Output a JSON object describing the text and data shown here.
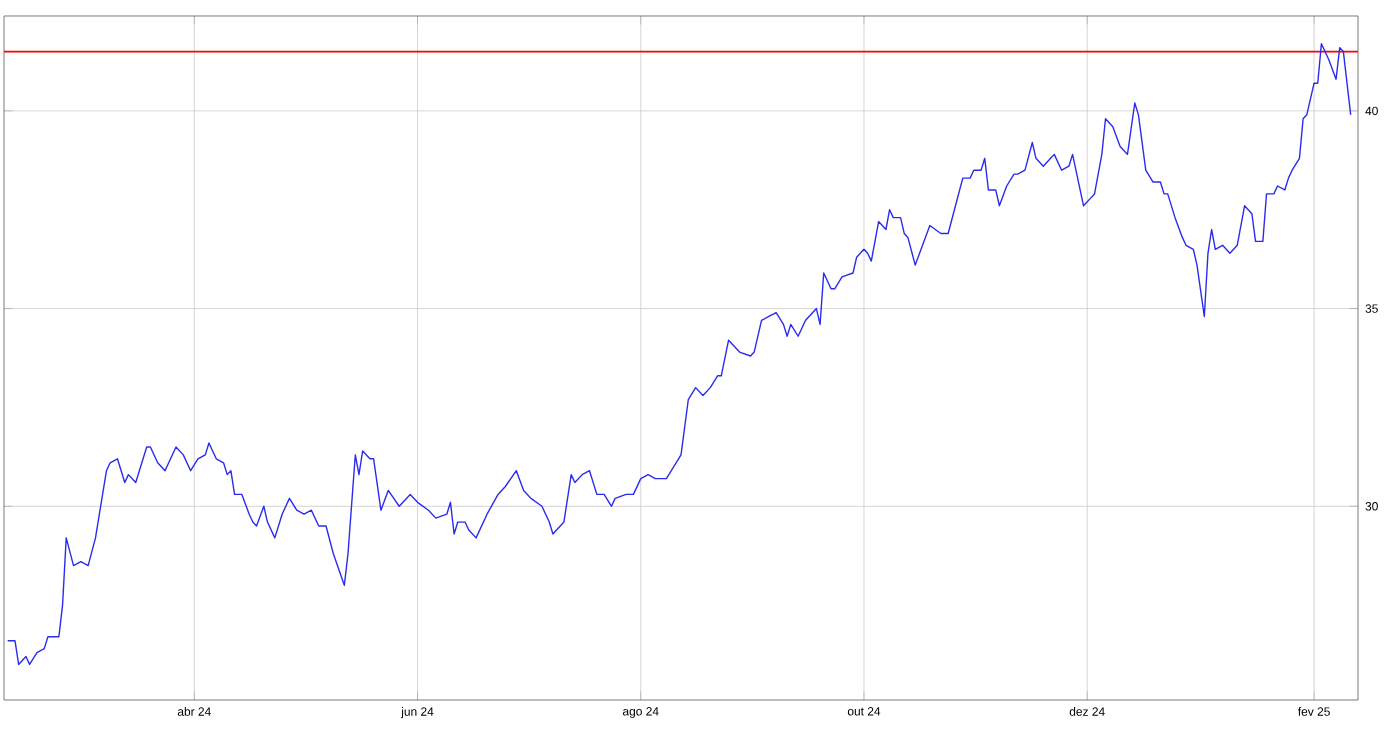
{
  "chart_data": {
    "type": "line",
    "x": [
      "2024-02-10",
      "2024-02-12",
      "2024-02-13",
      "2024-02-15",
      "2024-02-16",
      "2024-02-18",
      "2024-02-20",
      "2024-02-21",
      "2024-02-22",
      "2024-02-24",
      "2024-02-25",
      "2024-02-26",
      "2024-02-28",
      "2024-03-01",
      "2024-03-03",
      "2024-03-05",
      "2024-03-08",
      "2024-03-09",
      "2024-03-11",
      "2024-03-13",
      "2024-03-14",
      "2024-03-16",
      "2024-03-19",
      "2024-03-20",
      "2024-03-22",
      "2024-03-24",
      "2024-03-27",
      "2024-03-29",
      "2024-03-31",
      "2024-04-02",
      "2024-04-04",
      "2024-04-05",
      "2024-04-07",
      "2024-04-09",
      "2024-04-10",
      "2024-04-11",
      "2024-04-12",
      "2024-04-14",
      "2024-04-16",
      "2024-04-17",
      "2024-04-18",
      "2024-04-20",
      "2024-04-21",
      "2024-04-23",
      "2024-04-25",
      "2024-04-27",
      "2024-04-29",
      "2024-05-01",
      "2024-05-03",
      "2024-05-05",
      "2024-05-07",
      "2024-05-09",
      "2024-05-12",
      "2024-05-13",
      "2024-05-15",
      "2024-05-16",
      "2024-05-17",
      "2024-05-19",
      "2024-05-20",
      "2024-05-22",
      "2024-05-24",
      "2024-05-27",
      "2024-05-30",
      "2024-06-01",
      "2024-06-04",
      "2024-06-06",
      "2024-06-09",
      "2024-06-10",
      "2024-06-11",
      "2024-06-12",
      "2024-06-14",
      "2024-06-15",
      "2024-06-17",
      "2024-06-20",
      "2024-06-23",
      "2024-06-25",
      "2024-06-28",
      "2024-06-30",
      "2024-07-02",
      "2024-07-05",
      "2024-07-07",
      "2024-07-08",
      "2024-07-11",
      "2024-07-13",
      "2024-07-14",
      "2024-07-16",
      "2024-07-18",
      "2024-07-20",
      "2024-07-22",
      "2024-07-24",
      "2024-07-25",
      "2024-07-28",
      "2024-07-30",
      "2024-08-01",
      "2024-08-03",
      "2024-08-05",
      "2024-08-08",
      "2024-08-10",
      "2024-08-12",
      "2024-08-14",
      "2024-08-16",
      "2024-08-18",
      "2024-08-20",
      "2024-08-22",
      "2024-08-23",
      "2024-08-25",
      "2024-08-28",
      "2024-08-31",
      "2024-09-01",
      "2024-09-03",
      "2024-09-05",
      "2024-09-07",
      "2024-09-09",
      "2024-09-10",
      "2024-09-11",
      "2024-09-13",
      "2024-09-15",
      "2024-09-18",
      "2024-09-19",
      "2024-09-20",
      "2024-09-22",
      "2024-09-23",
      "2024-09-25",
      "2024-09-28",
      "2024-09-29",
      "2024-10-01",
      "2024-10-02",
      "2024-10-03",
      "2024-10-05",
      "2024-10-07",
      "2024-10-08",
      "2024-10-09",
      "2024-10-11",
      "2024-10-12",
      "2024-10-13",
      "2024-10-15",
      "2024-10-17",
      "2024-10-19",
      "2024-10-22",
      "2024-10-24",
      "2024-10-26",
      "2024-10-28",
      "2024-10-30",
      "2024-10-31",
      "2024-11-02",
      "2024-11-03",
      "2024-11-04",
      "2024-11-06",
      "2024-11-07",
      "2024-11-09",
      "2024-11-11",
      "2024-11-12",
      "2024-11-14",
      "2024-11-16",
      "2024-11-17",
      "2024-11-19",
      "2024-11-21",
      "2024-11-22",
      "2024-11-24",
      "2024-11-26",
      "2024-11-27",
      "2024-11-30",
      "2024-12-02",
      "2024-12-03",
      "2024-12-05",
      "2024-12-06",
      "2024-12-08",
      "2024-12-10",
      "2024-12-11",
      "2024-12-12",
      "2024-12-14",
      "2024-12-15",
      "2024-12-17",
      "2024-12-19",
      "2024-12-21",
      "2024-12-22",
      "2024-12-23",
      "2024-12-25",
      "2024-12-27",
      "2024-12-28",
      "2024-12-30",
      "2024-12-31",
      "2025-01-02",
      "2025-01-03",
      "2025-01-04",
      "2025-01-05",
      "2025-01-07",
      "2025-01-09",
      "2025-01-10",
      "2025-01-11",
      "2025-01-13",
      "2025-01-15",
      "2025-01-16",
      "2025-01-18",
      "2025-01-19",
      "2025-01-21",
      "2025-01-22",
      "2025-01-24",
      "2025-01-25",
      "2025-01-26",
      "2025-01-28",
      "2025-01-29",
      "2025-01-30",
      "2025-02-01",
      "2025-02-02",
      "2025-02-03",
      "2025-02-05",
      "2025-02-07",
      "2025-02-08",
      "2025-02-09",
      "2025-02-11"
    ],
    "series": [
      {
        "color": "#2b2bf0",
        "values": [
          26.6,
          26.6,
          26.0,
          26.2,
          26.0,
          26.3,
          26.4,
          26.7,
          26.7,
          26.7,
          27.5,
          29.2,
          28.5,
          28.6,
          28.5,
          29.2,
          30.9,
          31.1,
          31.2,
          30.6,
          30.8,
          30.6,
          31.5,
          31.5,
          31.1,
          30.9,
          31.5,
          31.3,
          30.9,
          31.2,
          31.3,
          31.6,
          31.2,
          31.1,
          30.8,
          30.9,
          30.3,
          30.3,
          29.8,
          29.6,
          29.5,
          30.0,
          29.6,
          29.2,
          29.8,
          30.2,
          29.9,
          29.8,
          29.9,
          29.5,
          29.5,
          28.8,
          28.0,
          28.8,
          31.3,
          30.8,
          31.4,
          31.2,
          31.2,
          29.9,
          30.4,
          30.0,
          30.3,
          30.1,
          29.9,
          29.7,
          29.8,
          30.1,
          29.3,
          29.6,
          29.6,
          29.4,
          29.2,
          29.8,
          30.3,
          30.5,
          30.9,
          30.4,
          30.2,
          30.0,
          29.6,
          29.3,
          29.6,
          30.8,
          30.6,
          30.8,
          30.9,
          30.3,
          30.3,
          30.0,
          30.2,
          30.3,
          30.3,
          30.7,
          30.8,
          30.7,
          30.7,
          31.0,
          31.3,
          32.7,
          33.0,
          32.8,
          33.0,
          33.3,
          33.3,
          34.2,
          33.9,
          33.8,
          33.9,
          34.7,
          34.8,
          34.9,
          34.6,
          34.3,
          34.6,
          34.3,
          34.7,
          35.0,
          34.6,
          35.9,
          35.5,
          35.5,
          35.8,
          35.9,
          36.3,
          36.5,
          36.4,
          36.2,
          37.2,
          37.0,
          37.5,
          37.3,
          37.3,
          36.9,
          36.8,
          36.1,
          36.6,
          37.1,
          36.9,
          36.9,
          37.6,
          38.3,
          38.3,
          38.5,
          38.5,
          38.8,
          38.0,
          38.0,
          37.6,
          38.1,
          38.4,
          38.4,
          38.5,
          39.2,
          38.8,
          38.6,
          38.8,
          38.9,
          38.5,
          38.6,
          38.9,
          37.6,
          37.8,
          37.9,
          38.9,
          39.8,
          39.6,
          39.1,
          39.0,
          38.9,
          40.2,
          39.9,
          38.5,
          38.2,
          38.2,
          37.9,
          37.9,
          37.3,
          36.8,
          36.6,
          36.5,
          36.1,
          34.8,
          36.4,
          37.0,
          36.5,
          36.6,
          36.4,
          36.5,
          36.6,
          37.6,
          37.4,
          36.7,
          36.7,
          37.9,
          37.9,
          38.1,
          38.0,
          38.3,
          38.5,
          38.8,
          39.8,
          39.9,
          40.7,
          40.7,
          41.7,
          41.3,
          40.8,
          41.6,
          41.5,
          39.9
        ]
      }
    ],
    "xlim": [
      "2024-02-09",
      "2025-02-13"
    ],
    "ylim": [
      25.1,
      42.4
    ],
    "xticks": [
      {
        "value": "2024-04-01",
        "label": "abr 24"
      },
      {
        "value": "2024-06-01",
        "label": "jun 24"
      },
      {
        "value": "2024-08-01",
        "label": "ago 24"
      },
      {
        "value": "2024-10-01",
        "label": "out 24"
      },
      {
        "value": "2024-12-01",
        "label": "dez 24"
      },
      {
        "value": "2025-02-01",
        "label": "fev 25"
      }
    ],
    "yticks": [
      30,
      35,
      40
    ],
    "ref_lines": [
      {
        "axis": "y",
        "value": 41.5,
        "color": "#ff0000"
      }
    ],
    "grid": true
  }
}
